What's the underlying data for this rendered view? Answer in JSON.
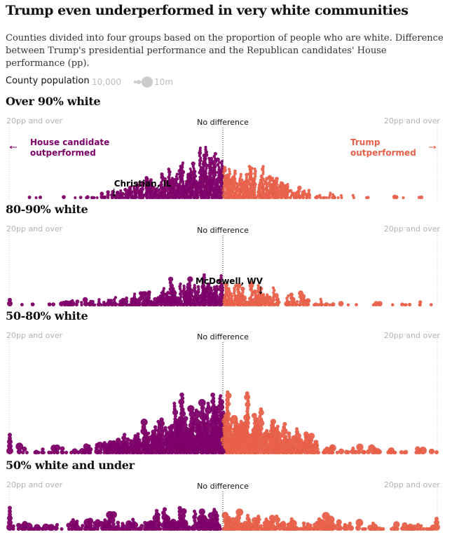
{
  "title": "Trump even underperformed in very white communities",
  "subtitle": "Counties divided into four groups based on the proportion of people who are white. Difference between Trump's presidential performance and the Republican candidates' House performance (pp).",
  "legend": {
    "label": "County population",
    "min_label": "10,000",
    "max_label": "10m"
  },
  "colors": {
    "house": "#7d0068",
    "trump": "#e8604a",
    "axis": "#999999",
    "muted": "#b3b3b3"
  },
  "chart_data": {
    "type": "scatter",
    "x_unit": "pp",
    "xlim": [
      -20,
      20
    ],
    "left_edge_label": "20pp and over",
    "right_edge_label": "20pp and over",
    "center_label": "No difference",
    "left_side_label_line1": "House candidate",
    "left_side_label_line2": "outperformed",
    "right_side_label_line1": "Trump",
    "right_side_label_line2": "outperformed",
    "panels": [
      {
        "name": "Over 90% white",
        "annotation": {
          "label": "Christian, IL",
          "x": -10.2
        }
      },
      {
        "name": "80-90% white",
        "annotation": {
          "label": "McDowell, WV",
          "x": 3.5
        }
      },
      {
        "name": "50-80% white"
      },
      {
        "name": "50% white and under"
      }
    ]
  }
}
